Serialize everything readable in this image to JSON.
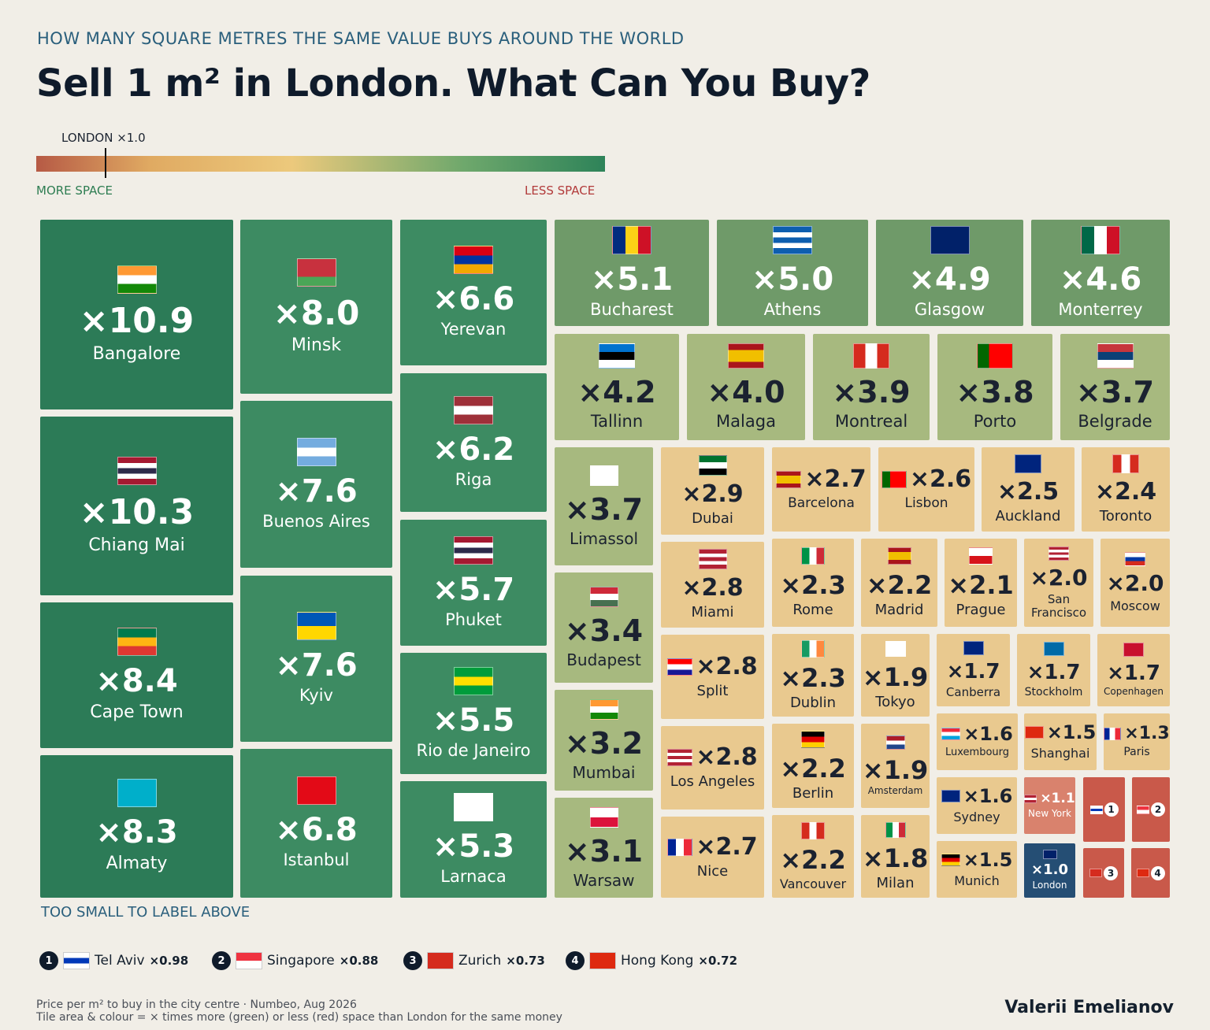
{
  "header": {
    "supertitle": "HOW MANY SQUARE METRES THE SAME VALUE BUYS AROUND THE WORLD",
    "title": "Sell 1 m² in London. What Can You Buy?"
  },
  "scale": {
    "marker_label": "LONDON ×1.0",
    "left_label": "MORE SPACE",
    "right_label": "LESS SPACE"
  },
  "chart_data": {
    "type": "treemap",
    "title": "Sell 1 m² in London. What Can You Buy?",
    "tiles": [
      {
        "city": "Bangalore",
        "mult": "×10.9",
        "value": 10.9
      },
      {
        "city": "Chiang Mai",
        "mult": "×10.3",
        "value": 10.3
      },
      {
        "city": "Cape Town",
        "mult": "×8.4",
        "value": 8.4
      },
      {
        "city": "Almaty",
        "mult": "×8.3",
        "value": 8.3
      },
      {
        "city": "Minsk",
        "mult": "×8.0",
        "value": 8.0
      },
      {
        "city": "Buenos Aires",
        "mult": "×7.6",
        "value": 7.6
      },
      {
        "city": "Kyiv",
        "mult": "×7.6",
        "value": 7.6
      },
      {
        "city": "Istanbul",
        "mult": "×6.8",
        "value": 6.8
      },
      {
        "city": "Yerevan",
        "mult": "×6.6",
        "value": 6.6
      },
      {
        "city": "Riga",
        "mult": "×6.2",
        "value": 6.2
      },
      {
        "city": "Phuket",
        "mult": "×5.7",
        "value": 5.7
      },
      {
        "city": "Rio de Janeiro",
        "mult": "×5.5",
        "value": 5.5
      },
      {
        "city": "Larnaca",
        "mult": "×5.3",
        "value": 5.3
      },
      {
        "city": "Bucharest",
        "mult": "×5.1",
        "value": 5.1
      },
      {
        "city": "Athens",
        "mult": "×5.0",
        "value": 5.0
      },
      {
        "city": "Glasgow",
        "mult": "×4.9",
        "value": 4.9
      },
      {
        "city": "Monterrey",
        "mult": "×4.6",
        "value": 4.6
      },
      {
        "city": "Tallinn",
        "mult": "×4.2",
        "value": 4.2
      },
      {
        "city": "Malaga",
        "mult": "×4.0",
        "value": 4.0
      },
      {
        "city": "Montreal",
        "mult": "×3.9",
        "value": 3.9
      },
      {
        "city": "Porto",
        "mult": "×3.8",
        "value": 3.8
      },
      {
        "city": "Belgrade",
        "mult": "×3.7",
        "value": 3.7
      },
      {
        "city": "Limassol",
        "mult": "×3.7",
        "value": 3.7
      },
      {
        "city": "Budapest",
        "mult": "×3.4",
        "value": 3.4
      },
      {
        "city": "Mumbai",
        "mult": "×3.2",
        "value": 3.2
      },
      {
        "city": "Warsaw",
        "mult": "×3.1",
        "value": 3.1
      },
      {
        "city": "Dubai",
        "mult": "×2.9",
        "value": 2.9
      },
      {
        "city": "Miami",
        "mult": "×2.8",
        "value": 2.8
      },
      {
        "city": "Split",
        "mult": "×2.8",
        "value": 2.8
      },
      {
        "city": "Los Angeles",
        "mult": "×2.8",
        "value": 2.8
      },
      {
        "city": "Nice",
        "mult": "×2.7",
        "value": 2.7
      },
      {
        "city": "Barcelona",
        "mult": "×2.7",
        "value": 2.7
      },
      {
        "city": "Lisbon",
        "mult": "×2.6",
        "value": 2.6
      },
      {
        "city": "Auckland",
        "mult": "×2.5",
        "value": 2.5
      },
      {
        "city": "Toronto",
        "mult": "×2.4",
        "value": 2.4
      },
      {
        "city": "Rome",
        "mult": "×2.3",
        "value": 2.3
      },
      {
        "city": "Madrid",
        "mult": "×2.2",
        "value": 2.2
      },
      {
        "city": "Prague",
        "mult": "×2.1",
        "value": 2.1
      },
      {
        "city": "San Francisco",
        "mult": "×2.0",
        "value": 2.0
      },
      {
        "city": "Moscow",
        "mult": "×2.0",
        "value": 2.0
      },
      {
        "city": "Dublin",
        "mult": "×2.3",
        "value": 2.3
      },
      {
        "city": "Tokyo",
        "mult": "×1.9",
        "value": 1.9
      },
      {
        "city": "Canberra",
        "mult": "×1.7",
        "value": 1.7
      },
      {
        "city": "Stockholm",
        "mult": "×1.7",
        "value": 1.7
      },
      {
        "city": "Copenhagen",
        "mult": "×1.7",
        "value": 1.7
      },
      {
        "city": "Berlin",
        "mult": "×2.2",
        "value": 2.2
      },
      {
        "city": "Amsterdam",
        "mult": "×1.9",
        "value": 1.9
      },
      {
        "city": "Luxembourg",
        "mult": "×1.6",
        "value": 1.6
      },
      {
        "city": "Shanghai",
        "mult": "×1.5",
        "value": 1.5
      },
      {
        "city": "Paris",
        "mult": "×1.3",
        "value": 1.3
      },
      {
        "city": "Vancouver",
        "mult": "×2.2",
        "value": 2.2
      },
      {
        "city": "Milan",
        "mult": "×1.8",
        "value": 1.8
      },
      {
        "city": "Sydney",
        "mult": "×1.6",
        "value": 1.6
      },
      {
        "city": "Munich",
        "mult": "×1.5",
        "value": 1.5
      },
      {
        "city": "New York",
        "mult": "×1.1",
        "value": 1.1
      },
      {
        "city": "London",
        "mult": "×1.0",
        "value": 1.0
      }
    ],
    "small_tiles": [
      {
        "num": "1",
        "city": "Tel Aviv",
        "mult": "×0.98",
        "value": 0.98
      },
      {
        "num": "2",
        "city": "Singapore",
        "mult": "×0.88",
        "value": 0.88
      },
      {
        "num": "3",
        "city": "Zurich",
        "mult": "×0.73",
        "value": 0.73
      },
      {
        "num": "4",
        "city": "Hong Kong",
        "mult": "×0.72",
        "value": 0.72
      }
    ]
  },
  "legend": {
    "heading": "TOO SMALL TO LABEL ABOVE"
  },
  "footer": {
    "note1": "Price per m² to buy in the city centre · Numbeo, Aug 2026",
    "note2": "Tile area & colour = × times more (green) or less (red) space than London for the same money",
    "author": "Valerii Emelianov"
  }
}
